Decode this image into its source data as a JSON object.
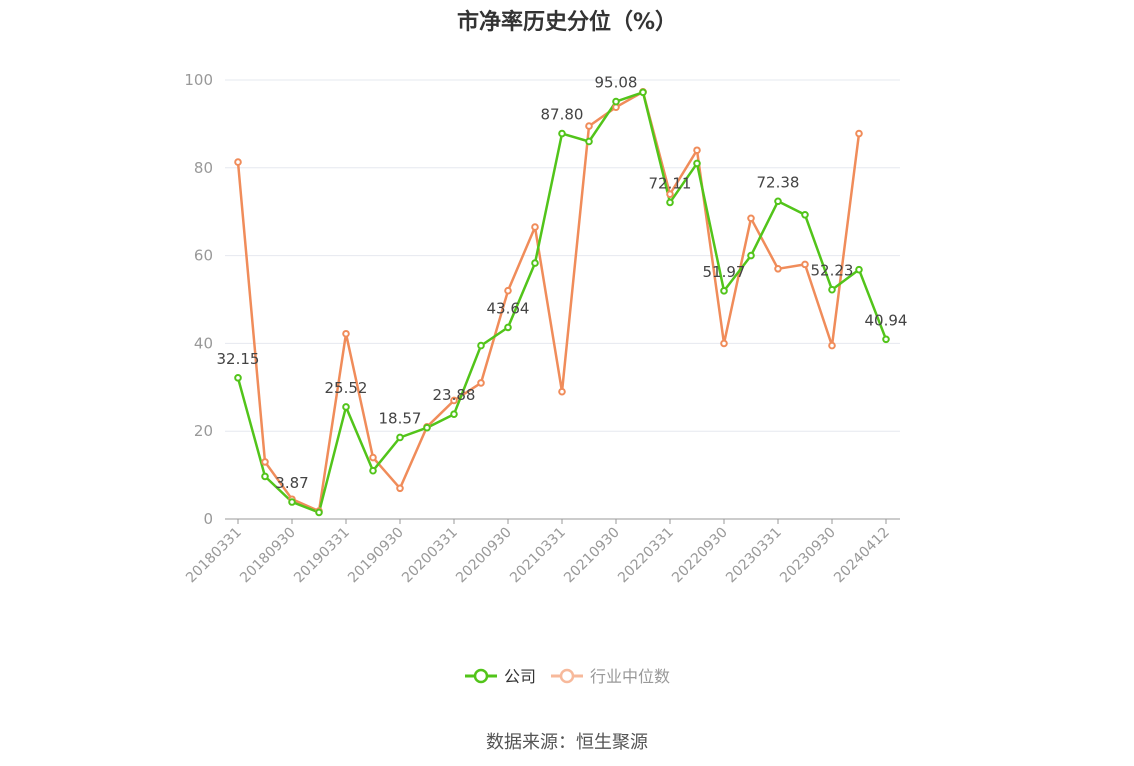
{
  "title": "市净率历史分位（%）",
  "source": "数据来源：恒生聚源",
  "chart_data": {
    "type": "line",
    "title": "市净率历史分位（%）",
    "ylim": [
      0,
      100
    ],
    "yticks": [
      "0",
      "20",
      "40",
      "60",
      "80",
      "100"
    ],
    "grid": "horizontal",
    "legend_position": "bottom",
    "x": [
      "20180331",
      "20180630",
      "20180930",
      "20181231",
      "20190331",
      "20190630",
      "20190930",
      "20191231",
      "20200331",
      "20200630",
      "20200930",
      "20201231",
      "20210331",
      "20210630",
      "20210930",
      "20211231",
      "20220331",
      "20220630",
      "20220930",
      "20221231",
      "20230331",
      "20230630",
      "20230930",
      "20231231",
      "20240412"
    ],
    "x_tick_labels": [
      "20180331",
      "20180930",
      "20190331",
      "20190930",
      "20200331",
      "20200930",
      "20210331",
      "20210930",
      "20220331",
      "20220930",
      "20230331",
      "20230930",
      "20240412"
    ],
    "series": [
      {
        "name": "公司",
        "color": "#52c41a",
        "values": [
          32.15,
          9.7,
          3.87,
          1.5,
          25.52,
          11.0,
          18.57,
          20.8,
          23.88,
          39.5,
          43.64,
          58.3,
          87.8,
          86.0,
          95.08,
          97.2,
          72.11,
          81.0,
          51.97,
          60.0,
          72.38,
          69.3,
          52.23,
          56.8,
          40.94
        ],
        "labels": [
          "32.15",
          "",
          "3.87",
          "",
          "25.52",
          "",
          "18.57",
          "",
          "23.88",
          "",
          "43.64",
          "",
          "87.80",
          "",
          "95.08",
          "",
          "72.11",
          "",
          "51.97",
          "",
          "72.38",
          "",
          "52.23",
          "",
          "40.94"
        ]
      },
      {
        "name": "行业中位数",
        "color": "#f08c5a",
        "values": [
          81.3,
          13.0,
          4.5,
          1.8,
          42.2,
          14.0,
          7.0,
          21.0,
          27.0,
          31.0,
          52.0,
          66.5,
          29.0,
          89.5,
          93.8,
          97.3,
          74.0,
          84.0,
          40.0,
          68.5,
          57.0,
          58.0,
          39.5,
          87.8,
          null
        ]
      }
    ]
  }
}
